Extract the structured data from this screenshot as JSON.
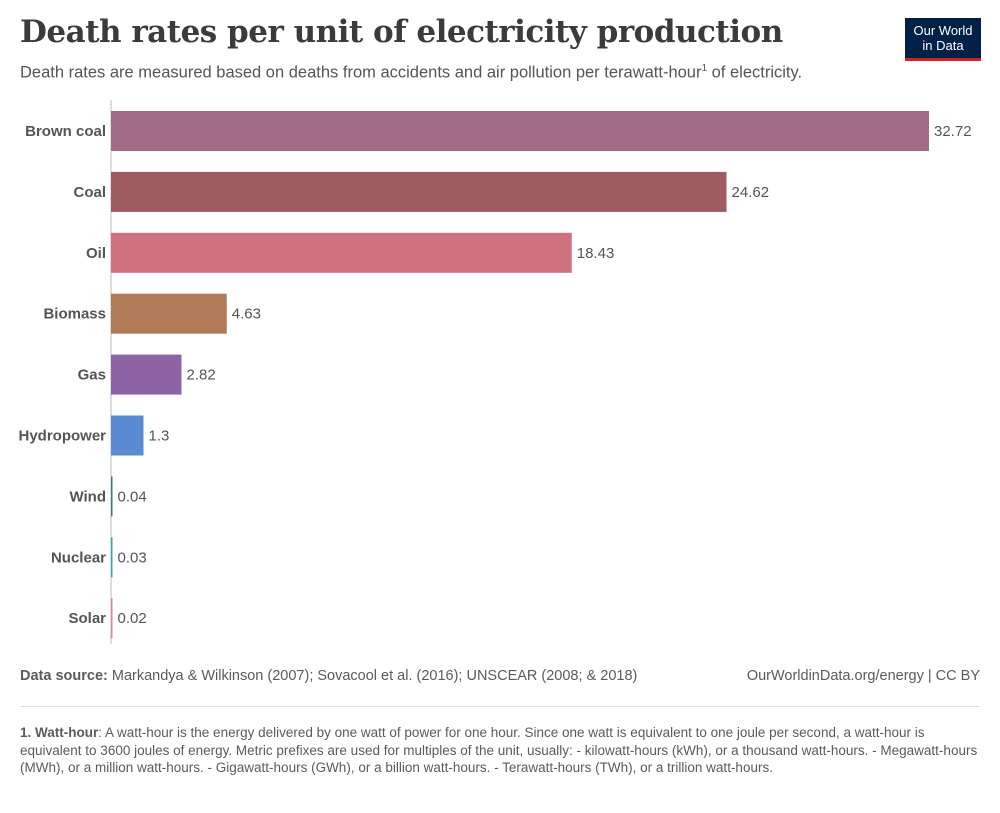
{
  "header": {
    "title": "Death rates per unit of electricity production",
    "subtitle": "Death rates are measured based on deaths from accidents and air pollution per terawatt-hour",
    "subtitle_footnote_mark": "1",
    "subtitle_suffix": " of electricity."
  },
  "logo": {
    "line1": "Our World",
    "line2": "in Data",
    "bg_color": "#002147",
    "accent_color": "#ce261e"
  },
  "chart_data": {
    "type": "bar",
    "orientation": "horizontal",
    "title": "Death rates per unit of electricity production",
    "subtitle": "Death rates are measured based on deaths from accidents and air pollution per terawatt-hour¹ of electricity.",
    "categories": [
      "Brown coal",
      "Coal",
      "Oil",
      "Biomass",
      "Gas",
      "Hydropower",
      "Wind",
      "Nuclear",
      "Solar"
    ],
    "values": [
      32.72,
      24.62,
      18.43,
      4.63,
      2.82,
      1.3,
      0.04,
      0.03,
      0.02
    ],
    "value_labels": [
      "32.72",
      "24.62",
      "18.43",
      "4.63",
      "2.82",
      "1.3",
      "0.04",
      "0.03",
      "0.02"
    ],
    "colors": [
      "#a26c86",
      "#a05a62",
      "#cf7280",
      "#b07a56",
      "#8e63a6",
      "#5a8ad2",
      "#3e7a80",
      "#3aa6a6",
      "#d48aa6"
    ],
    "xlim": [
      0,
      32.72
    ],
    "xlabel": "",
    "ylabel": "",
    "grid": false,
    "legend": "none"
  },
  "footer": {
    "source_label": "Data source:",
    "source_text": " Markandya & Wilkinson (2007); Sovacool et al. (2016); UNSCEAR (2008; & 2018)",
    "credit": "OurWorldinData.org/energy | CC BY",
    "footnote_label": "1. Watt-hour",
    "footnote_text": ": A watt-hour is the energy delivered by one watt of power for one hour. Since one watt is equivalent to one joule per second, a watt-hour is equivalent to 3600 joules of energy. Metric prefixes are used for multiples of the unit, usually: - kilowatt-hours (kWh), or a thousand watt-hours. - Megawatt-hours (MWh), or a million watt-hours. - Gigawatt-hours (GWh), or a billion watt-hours. - Terawatt-hours (TWh), or a trillion watt-hours."
  }
}
